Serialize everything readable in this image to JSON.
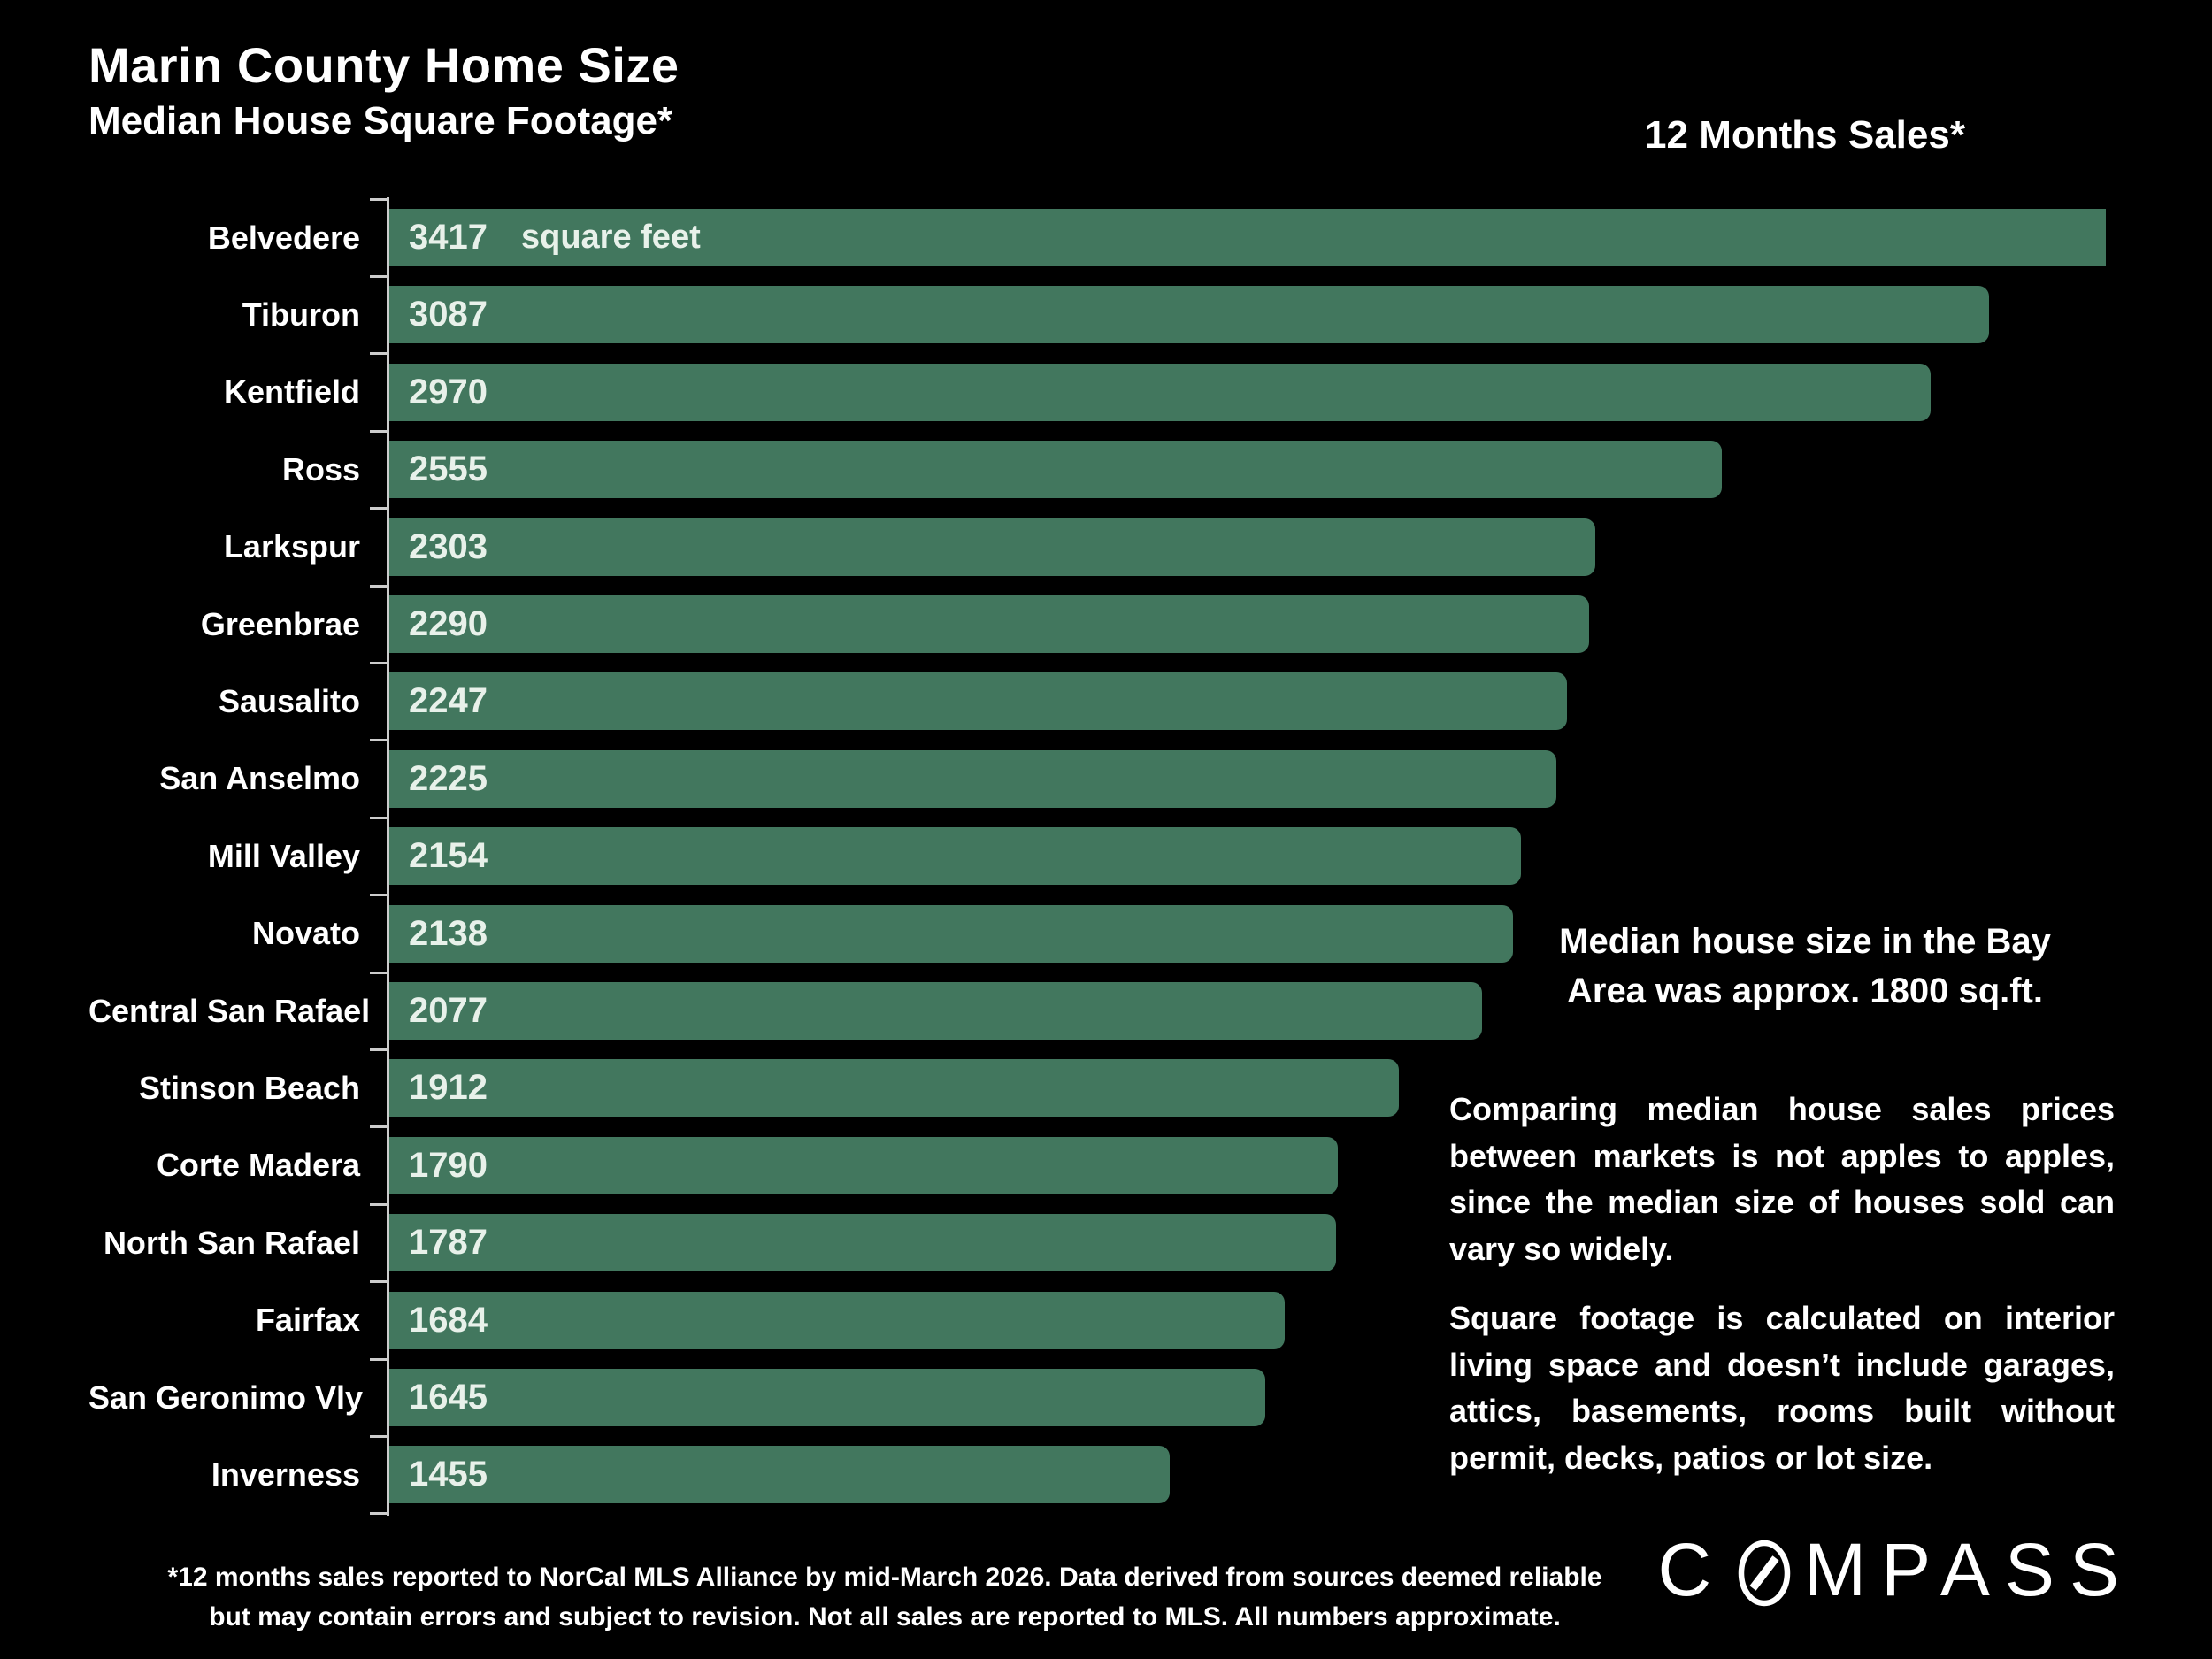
{
  "title": "Marin County Home Size",
  "subtitle": "Median House Square Footage*",
  "sales_header": "12 Months Sales*",
  "unit_label": "square feet",
  "side_note": [
    "Median house size in the Bay",
    "Area was approx. 1800 sq.ft."
  ],
  "paragraphs": [
    "Comparing median house sales prices between markets is not apples to apples, since the median size of houses sold can vary so widely.",
    "Square footage is calculated on interior living space and doesn’t include garages, attics, basements, rooms built without permit, decks, patios or lot size."
  ],
  "footnote": [
    "*12 months sales reported to NorCal MLS Alliance by mid-March 2026. Data derived from sources deemed reliable",
    "but may contain errors and subject to revision. Not all sales are reported to MLS. All numbers approximate."
  ],
  "logo": {
    "name": "COMPASS",
    "prefix": "C",
    "suffix": "MPASS"
  },
  "colors": {
    "background": "#000000",
    "bar_green": "#42775e",
    "bar_value_text": "#e8f1ea",
    "label_text": "#ffffff",
    "axis": "#cccccc"
  },
  "chart_data": {
    "type": "bar",
    "orientation": "horizontal",
    "title": "Marin County Home Size — Median House Square Footage",
    "unit": "square feet",
    "categories": [
      "Belvedere",
      "Tiburon",
      "Kentfield",
      "Ross",
      "Larkspur",
      "Greenbrae",
      "Sausalito",
      "San Anselmo",
      "Mill Valley",
      "Novato",
      "Central San Rafael",
      "Stinson Beach",
      "Corte Madera",
      "North San Rafael",
      "Fairfax",
      "San Geronimo Vly",
      "Inverness"
    ],
    "values": [
      3417,
      3087,
      2970,
      2555,
      2303,
      2290,
      2247,
      2225,
      2154,
      2138,
      2077,
      1912,
      1790,
      1787,
      1684,
      1645,
      1455
    ],
    "value_labels_inside_bars": true,
    "first_bar_value_suffix": "square feet",
    "xlim": [
      -100,
      3320
    ],
    "first_bar_clipped_at_plot_edge": true,
    "grid": false,
    "legend": "none"
  }
}
